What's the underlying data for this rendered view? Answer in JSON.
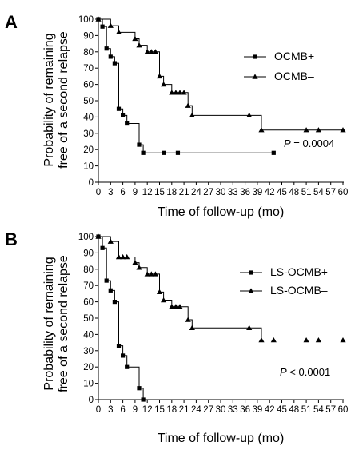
{
  "chart_data": [
    {
      "panel": "A",
      "type": "line",
      "step": true,
      "xlabel": "Time of follow-up (mo)",
      "ylabel": [
        "Probability of remaining",
        "free of a second relapse"
      ],
      "xlim": [
        0,
        60
      ],
      "ylim": [
        0,
        100
      ],
      "xticks": [
        0,
        3,
        6,
        9,
        12,
        15,
        18,
        21,
        24,
        27,
        30,
        33,
        36,
        39,
        42,
        45,
        48,
        51,
        54,
        57,
        60
      ],
      "yticks": [
        0,
        10,
        20,
        30,
        40,
        50,
        60,
        70,
        80,
        90,
        100
      ],
      "legend_position": "right",
      "annotation": {
        "label": "P",
        "text": " = 0.0004"
      },
      "series": [
        {
          "name": "OCMB+",
          "marker": "square",
          "steps": [
            [
              0,
              100
            ],
            [
              1,
              95.5
            ],
            [
              2,
              82
            ],
            [
              3,
              77
            ],
            [
              4,
              73
            ],
            [
              5,
              45
            ],
            [
              6,
              41
            ],
            [
              7,
              36
            ],
            [
              10,
              23
            ],
            [
              11,
              18
            ],
            [
              43,
              18
            ]
          ],
          "markers": [
            [
              0,
              100
            ],
            [
              1,
              95.5
            ],
            [
              2,
              82
            ],
            [
              3,
              77
            ],
            [
              4,
              73
            ],
            [
              5,
              45
            ],
            [
              6,
              41
            ],
            [
              7,
              36
            ],
            [
              10,
              23
            ],
            [
              11,
              18
            ],
            [
              16,
              18
            ],
            [
              19.5,
              18
            ],
            [
              43,
              18
            ]
          ]
        },
        {
          "name": "OCMB–",
          "marker": "triangle",
          "steps": [
            [
              0,
              100
            ],
            [
              3,
              96
            ],
            [
              5,
              92
            ],
            [
              9,
              88
            ],
            [
              10,
              84
            ],
            [
              12,
              80
            ],
            [
              15,
              65
            ],
            [
              16,
              60
            ],
            [
              18,
              55
            ],
            [
              22,
              47
            ],
            [
              23,
              41
            ],
            [
              40,
              32
            ],
            [
              60,
              32
            ]
          ],
          "markers": [
            [
              0,
              100
            ],
            [
              3,
              96
            ],
            [
              5,
              92
            ],
            [
              9,
              88
            ],
            [
              10,
              84
            ],
            [
              12,
              80
            ],
            [
              13,
              80
            ],
            [
              14,
              80
            ],
            [
              15,
              65
            ],
            [
              16,
              60
            ],
            [
              18,
              55
            ],
            [
              19,
              55
            ],
            [
              20,
              55
            ],
            [
              21,
              55
            ],
            [
              22,
              47
            ],
            [
              23,
              41
            ],
            [
              37,
              41
            ],
            [
              40,
              32
            ],
            [
              51,
              32
            ],
            [
              54,
              32
            ],
            [
              60,
              32
            ]
          ]
        }
      ]
    },
    {
      "panel": "B",
      "type": "line",
      "step": true,
      "xlabel": "Time of follow-up (mo)",
      "ylabel": [
        "Probability of remaining",
        "free of a second relapse"
      ],
      "xlim": [
        0,
        60
      ],
      "ylim": [
        0,
        100
      ],
      "xticks": [
        0,
        3,
        6,
        9,
        12,
        15,
        18,
        21,
        24,
        27,
        30,
        33,
        36,
        39,
        42,
        45,
        48,
        51,
        54,
        57,
        60
      ],
      "yticks": [
        0,
        10,
        20,
        30,
        40,
        50,
        60,
        70,
        80,
        90,
        100
      ],
      "legend_position": "right",
      "annotation": {
        "label": "P",
        "text": " < 0.0001"
      },
      "series": [
        {
          "name": "LS-OCMB+",
          "marker": "square",
          "steps": [
            [
              0,
              100
            ],
            [
              1,
              93
            ],
            [
              2,
              73
            ],
            [
              3,
              67
            ],
            [
              4,
              60
            ],
            [
              5,
              33
            ],
            [
              6,
              27
            ],
            [
              7,
              20
            ],
            [
              10,
              7
            ],
            [
              11,
              0
            ]
          ],
          "markers": [
            [
              0,
              100
            ],
            [
              1,
              93
            ],
            [
              2,
              73
            ],
            [
              3,
              67
            ],
            [
              4,
              60
            ],
            [
              5,
              33
            ],
            [
              6,
              27
            ],
            [
              7,
              20
            ],
            [
              10,
              7
            ],
            [
              11,
              0
            ]
          ]
        },
        {
          "name": "LS-OCMB–",
          "marker": "triangle",
          "steps": [
            [
              0,
              100
            ],
            [
              3,
              97
            ],
            [
              5,
              87.5
            ],
            [
              9,
              84
            ],
            [
              10,
              81
            ],
            [
              12,
              77
            ],
            [
              15,
              66
            ],
            [
              16,
              61
            ],
            [
              18,
              57
            ],
            [
              22,
              49
            ],
            [
              23,
              44
            ],
            [
              40,
              36.5
            ],
            [
              60,
              36.5
            ]
          ],
          "markers": [
            [
              0,
              100
            ],
            [
              3,
              97
            ],
            [
              5,
              87.5
            ],
            [
              6,
              87.5
            ],
            [
              7,
              87.5
            ],
            [
              9,
              84
            ],
            [
              10,
              81
            ],
            [
              12,
              77
            ],
            [
              13,
              77
            ],
            [
              14,
              77
            ],
            [
              15,
              66
            ],
            [
              16,
              61
            ],
            [
              18,
              57
            ],
            [
              19,
              57
            ],
            [
              20,
              57
            ],
            [
              22,
              49
            ],
            [
              23,
              44
            ],
            [
              37,
              44
            ],
            [
              40,
              36.5
            ],
            [
              43,
              36.5
            ],
            [
              51,
              36.5
            ],
            [
              54,
              36.5
            ],
            [
              60,
              36.5
            ]
          ]
        }
      ]
    }
  ]
}
